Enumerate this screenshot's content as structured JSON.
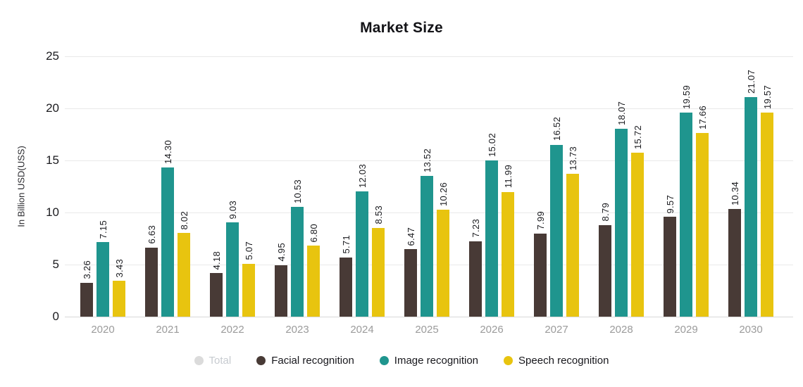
{
  "title": "Market Size",
  "y_axis": {
    "title": "In Billion USD(USS)",
    "ticks": [
      25,
      20,
      15,
      10,
      5,
      0
    ],
    "max": 25
  },
  "legend": {
    "items": [
      {
        "label": "Total",
        "color": "#dbdbdb",
        "disabled": true
      },
      {
        "label": "Facial recognition",
        "color": "#483a36",
        "disabled": false
      },
      {
        "label": "Image recognition",
        "color": "#1f958e",
        "disabled": false
      },
      {
        "label": "Speech recognition",
        "color": "#e8c40f",
        "disabled": false
      }
    ]
  },
  "colors": {
    "facial": "#483a36",
    "image": "#1f958e",
    "speech": "#e8c40f",
    "gridline": "#e9e9e9",
    "axis_tick_text": "#1b1b1f",
    "x_label_text": "#9b9b9b",
    "disabled_legend_text": "#c7cbd0"
  },
  "chart_data": {
    "type": "bar",
    "title": "Market Size",
    "xlabel": "",
    "ylabel": "In Billion USD(USS)",
    "ylim": [
      0,
      25
    ],
    "grid": true,
    "legend_position": "bottom",
    "value_label_format": "2-decimals, rotated 90deg above bar",
    "categories": [
      "2020",
      "2021",
      "2022",
      "2023",
      "2024",
      "2025",
      "2026",
      "2027",
      "2028",
      "2029",
      "2030"
    ],
    "series": [
      {
        "name": "Total",
        "visible": false
      },
      {
        "name": "Facial recognition",
        "color": "#483a36",
        "visible": true,
        "values": [
          3.26,
          6.63,
          4.18,
          4.95,
          5.71,
          6.47,
          7.23,
          7.99,
          8.79,
          9.57,
          10.34
        ]
      },
      {
        "name": "Image recognition",
        "color": "#1f958e",
        "visible": true,
        "values": [
          7.15,
          14.3,
          9.03,
          10.53,
          12.03,
          13.52,
          15.02,
          16.52,
          18.07,
          19.59,
          21.07
        ]
      },
      {
        "name": "Speech recognition",
        "color": "#e8c40f",
        "visible": true,
        "values": [
          3.43,
          8.02,
          5.07,
          6.8,
          8.53,
          10.26,
          11.99,
          13.73,
          15.72,
          17.66,
          19.57
        ]
      }
    ]
  }
}
